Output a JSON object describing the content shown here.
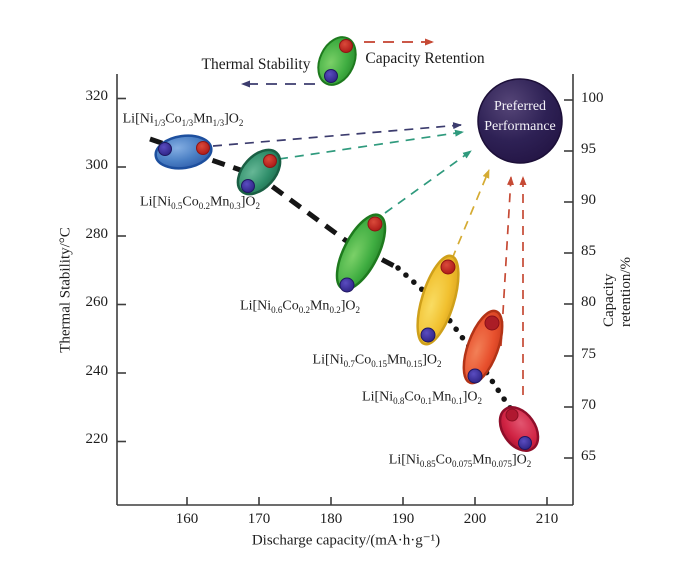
{
  "figure": {
    "legend": {
      "thermal_label": "Thermal Stability",
      "capacity_label": "Capacity Retention"
    },
    "preferred": {
      "line1": "Preferred",
      "line2": "Performance"
    },
    "axes": {
      "x": {
        "title": "Discharge capacity/(mA·h·g⁻¹)",
        "ticks": [
          "160",
          "170",
          "180",
          "190",
          "200",
          "210"
        ]
      },
      "left": {
        "title": "Thermal Stability/°C",
        "ticks": [
          "320",
          "300",
          "280",
          "260",
          "240",
          "220"
        ]
      },
      "right": {
        "title": "Capacity retention/%",
        "ticks": [
          "100",
          "95",
          "90",
          "85",
          "80",
          "75",
          "70",
          "65"
        ]
      }
    },
    "materials": [
      {
        "formula": "Li[Ni_1/3_Co_1/3_Mn_1/3_]O_2_"
      },
      {
        "formula": "Li[Ni_0.5_Co_0.2_Mn_0.3_]O_2_"
      },
      {
        "formula": "Li[Ni_0.6_Co_0.2_Mn_0.2_]O_2_"
      },
      {
        "formula": "Li[Ni_0.7_Co_0.15_Mn_0.15_]O_2_"
      },
      {
        "formula": "Li[Ni_0.8_Co_0.1_Mn_0.1_]O_2_"
      },
      {
        "formula": "Li[Ni_0.85_Co_0.075_Mn_0.075_]O_2_"
      }
    ]
  },
  "colors": {
    "ellipse_blue": "#4a7fc4",
    "ellipse_teal": "#2f8e6a",
    "ellipse_green": "#3fad41",
    "ellipse_yellow": "#f1c02f",
    "ellipse_orange": "#e8512e",
    "ellipse_crimson": "#d02343",
    "dot_red": "#c32222",
    "dot_navy": "#342a97",
    "preferred_circle": "#2e2155",
    "trend_line": "#151515",
    "arrow_navy": "#3c3c6e",
    "arrow_teal": "#2f9a7d",
    "arrow_yellow": "#d5ab32",
    "arrow_red": "#c64a35"
  },
  "chart_data": {
    "type": "scatter",
    "title": "",
    "xlabel": "Discharge capacity/(mA·h·g⁻¹)",
    "ylabel_left": "Thermal Stability/°C",
    "ylabel_right": "Capacity retention/%",
    "xlim": [
      150,
      213.5
    ],
    "ylim_left": [
      202,
      327
    ],
    "ylim_right": [
      60,
      102.5
    ],
    "x_ticks": [
      160,
      170,
      180,
      190,
      200,
      210
    ],
    "left_ticks": [
      320,
      300,
      280,
      260,
      240,
      220
    ],
    "right_ticks": [
      100,
      95,
      90,
      85,
      80,
      75,
      70,
      65
    ],
    "grid": false,
    "legend_position": "top",
    "series": [
      {
        "name": "Thermal Stability",
        "axis": "left",
        "x": [
          157,
          168,
          182,
          193,
          200,
          207
        ],
        "y": [
          305,
          295,
          266,
          251,
          240,
          220
        ]
      },
      {
        "name": "Capacity Retention",
        "axis": "right",
        "x": [
          162,
          172,
          186,
          196,
          202,
          205
        ],
        "y": [
          95,
          94,
          88,
          84,
          78,
          69
        ]
      }
    ],
    "points": [
      {
        "material": "Li[Ni1/3Co1/3Mn1/3]O2",
        "discharge_capacity": 160,
        "thermal_stability_C": 305,
        "capacity_retention_pct": 95,
        "ellipse_color": "#4a7fc4"
      },
      {
        "material": "Li[Ni0.5Co0.2Mn0.3]O2",
        "discharge_capacity": 170,
        "thermal_stability_C": 295,
        "capacity_retention_pct": 94,
        "ellipse_color": "#2f8e6a"
      },
      {
        "material": "Li[Ni0.6Co0.2Mn0.2]O2",
        "discharge_capacity": 184,
        "thermal_stability_C": 266,
        "capacity_retention_pct": 88,
        "ellipse_color": "#3fad41"
      },
      {
        "material": "Li[Ni0.7Co0.15Mn0.15]O2",
        "discharge_capacity": 195,
        "thermal_stability_C": 251,
        "capacity_retention_pct": 84,
        "ellipse_color": "#f1c02f"
      },
      {
        "material": "Li[Ni0.8Co0.1Mn0.1]O2",
        "discharge_capacity": 201,
        "thermal_stability_C": 240,
        "capacity_retention_pct": 78,
        "ellipse_color": "#e8512e"
      },
      {
        "material": "Li[Ni0.85Co0.075Mn0.075]O2",
        "discharge_capacity": 206,
        "thermal_stability_C": 220,
        "capacity_retention_pct": 69,
        "ellipse_color": "#d02343"
      }
    ],
    "annotations": [
      "Preferred Performance"
    ]
  }
}
